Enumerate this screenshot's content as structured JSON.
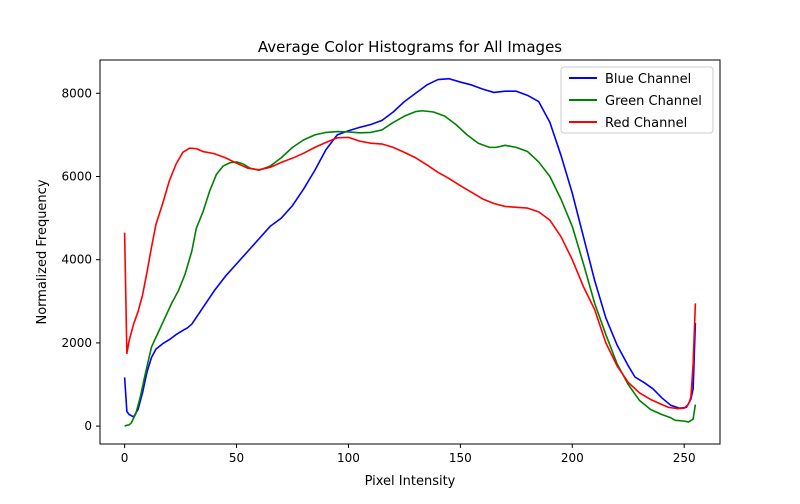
{
  "chart_data": {
    "type": "line",
    "title": "Average Color Histograms for All Images",
    "xlabel": "Pixel Intensity",
    "ylabel": "Normalized Frequency",
    "xlim": [
      -11,
      266
    ],
    "ylim": [
      -430,
      8800
    ],
    "xticks": [
      0,
      50,
      100,
      150,
      200,
      250
    ],
    "yticks": [
      0,
      2000,
      4000,
      6000,
      8000
    ],
    "grid": false,
    "legend_position": "top-right",
    "series": [
      {
        "name": "Blue Channel",
        "color": "#0000ff",
        "points": [
          [
            0,
            1170
          ],
          [
            1,
            350
          ],
          [
            2,
            280
          ],
          [
            4,
            220
          ],
          [
            6,
            400
          ],
          [
            8,
            800
          ],
          [
            10,
            1300
          ],
          [
            12,
            1650
          ],
          [
            14,
            1850
          ],
          [
            17,
            1980
          ],
          [
            20,
            2080
          ],
          [
            23,
            2200
          ],
          [
            26,
            2300
          ],
          [
            28,
            2360
          ],
          [
            30,
            2450
          ],
          [
            35,
            2850
          ],
          [
            40,
            3250
          ],
          [
            45,
            3600
          ],
          [
            50,
            3900
          ],
          [
            55,
            4200
          ],
          [
            60,
            4500
          ],
          [
            65,
            4800
          ],
          [
            70,
            5000
          ],
          [
            75,
            5300
          ],
          [
            80,
            5700
          ],
          [
            85,
            6150
          ],
          [
            90,
            6650
          ],
          [
            95,
            7000
          ],
          [
            100,
            7100
          ],
          [
            105,
            7180
          ],
          [
            110,
            7250
          ],
          [
            115,
            7350
          ],
          [
            120,
            7550
          ],
          [
            125,
            7800
          ],
          [
            130,
            8000
          ],
          [
            135,
            8200
          ],
          [
            140,
            8330
          ],
          [
            145,
            8350
          ],
          [
            150,
            8270
          ],
          [
            155,
            8200
          ],
          [
            160,
            8100
          ],
          [
            165,
            8020
          ],
          [
            170,
            8050
          ],
          [
            175,
            8050
          ],
          [
            180,
            7950
          ],
          [
            185,
            7800
          ],
          [
            190,
            7300
          ],
          [
            195,
            6500
          ],
          [
            200,
            5600
          ],
          [
            205,
            4550
          ],
          [
            210,
            3500
          ],
          [
            215,
            2600
          ],
          [
            220,
            1950
          ],
          [
            225,
            1450
          ],
          [
            228,
            1180
          ],
          [
            232,
            1050
          ],
          [
            236,
            900
          ],
          [
            240,
            680
          ],
          [
            244,
            500
          ],
          [
            248,
            430
          ],
          [
            251,
            450
          ],
          [
            253,
            650
          ],
          [
            254,
            900
          ],
          [
            255,
            2480
          ]
        ]
      },
      {
        "name": "Green Channel",
        "color": "#008000",
        "points": [
          [
            0,
            0
          ],
          [
            1,
            20
          ],
          [
            2,
            30
          ],
          [
            3,
            80
          ],
          [
            5,
            300
          ],
          [
            7,
            700
          ],
          [
            9,
            1200
          ],
          [
            12,
            1900
          ],
          [
            15,
            2250
          ],
          [
            18,
            2600
          ],
          [
            21,
            2950
          ],
          [
            24,
            3250
          ],
          [
            27,
            3650
          ],
          [
            30,
            4200
          ],
          [
            32,
            4750
          ],
          [
            35,
            5150
          ],
          [
            38,
            5650
          ],
          [
            41,
            6050
          ],
          [
            44,
            6250
          ],
          [
            47,
            6330
          ],
          [
            50,
            6350
          ],
          [
            53,
            6300
          ],
          [
            56,
            6200
          ],
          [
            60,
            6150
          ],
          [
            65,
            6250
          ],
          [
            70,
            6450
          ],
          [
            75,
            6700
          ],
          [
            80,
            6880
          ],
          [
            85,
            7000
          ],
          [
            90,
            7060
          ],
          [
            95,
            7080
          ],
          [
            100,
            7070
          ],
          [
            105,
            7050
          ],
          [
            110,
            7060
          ],
          [
            115,
            7120
          ],
          [
            120,
            7300
          ],
          [
            125,
            7450
          ],
          [
            130,
            7560
          ],
          [
            133,
            7580
          ],
          [
            138,
            7550
          ],
          [
            143,
            7450
          ],
          [
            148,
            7250
          ],
          [
            153,
            7000
          ],
          [
            158,
            6800
          ],
          [
            163,
            6700
          ],
          [
            166,
            6700
          ],
          [
            170,
            6750
          ],
          [
            175,
            6700
          ],
          [
            180,
            6600
          ],
          [
            185,
            6350
          ],
          [
            190,
            6000
          ],
          [
            195,
            5450
          ],
          [
            200,
            4800
          ],
          [
            205,
            3900
          ],
          [
            210,
            2950
          ],
          [
            215,
            2200
          ],
          [
            220,
            1500
          ],
          [
            225,
            1000
          ],
          [
            230,
            620
          ],
          [
            235,
            400
          ],
          [
            240,
            280
          ],
          [
            244,
            200
          ],
          [
            246,
            140
          ],
          [
            250,
            120
          ],
          [
            252,
            100
          ],
          [
            254,
            170
          ],
          [
            255,
            520
          ]
        ]
      },
      {
        "name": "Red Channel",
        "color": "#ff0000",
        "points": [
          [
            0,
            4650
          ],
          [
            1,
            1750
          ],
          [
            2,
            2050
          ],
          [
            4,
            2450
          ],
          [
            6,
            2750
          ],
          [
            8,
            3150
          ],
          [
            10,
            3700
          ],
          [
            12,
            4300
          ],
          [
            14,
            4850
          ],
          [
            17,
            5350
          ],
          [
            20,
            5900
          ],
          [
            23,
            6300
          ],
          [
            26,
            6580
          ],
          [
            29,
            6680
          ],
          [
            32,
            6670
          ],
          [
            35,
            6600
          ],
          [
            40,
            6550
          ],
          [
            45,
            6450
          ],
          [
            50,
            6320
          ],
          [
            55,
            6200
          ],
          [
            60,
            6160
          ],
          [
            65,
            6220
          ],
          [
            70,
            6340
          ],
          [
            75,
            6440
          ],
          [
            80,
            6560
          ],
          [
            85,
            6700
          ],
          [
            90,
            6820
          ],
          [
            95,
            6930
          ],
          [
            100,
            6940
          ],
          [
            105,
            6850
          ],
          [
            110,
            6800
          ],
          [
            115,
            6780
          ],
          [
            120,
            6700
          ],
          [
            125,
            6580
          ],
          [
            130,
            6450
          ],
          [
            135,
            6280
          ],
          [
            140,
            6100
          ],
          [
            145,
            5950
          ],
          [
            150,
            5780
          ],
          [
            155,
            5620
          ],
          [
            160,
            5460
          ],
          [
            165,
            5350
          ],
          [
            170,
            5280
          ],
          [
            175,
            5260
          ],
          [
            180,
            5240
          ],
          [
            185,
            5150
          ],
          [
            190,
            4950
          ],
          [
            195,
            4550
          ],
          [
            200,
            4000
          ],
          [
            205,
            3350
          ],
          [
            210,
            2800
          ],
          [
            215,
            2000
          ],
          [
            220,
            1450
          ],
          [
            225,
            1050
          ],
          [
            230,
            800
          ],
          [
            235,
            640
          ],
          [
            240,
            520
          ],
          [
            243,
            450
          ],
          [
            247,
            420
          ],
          [
            250,
            430
          ],
          [
            252,
            530
          ],
          [
            253,
            700
          ],
          [
            254,
            1500
          ],
          [
            255,
            2950
          ]
        ]
      }
    ]
  }
}
